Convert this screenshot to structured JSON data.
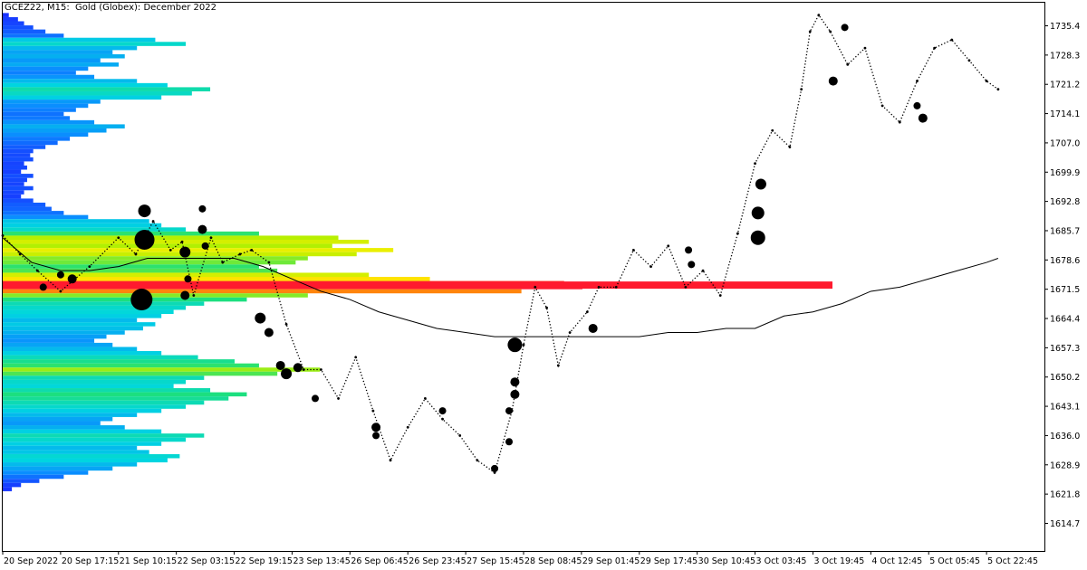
{
  "window": {
    "title": "GCEZ22, M15:  Gold (Globex): December 2022"
  },
  "colors": {
    "background": "#ffffff",
    "axis": "#000000",
    "price_line": "#000000",
    "poc": "#ff1a2e",
    "profile_gradient": [
      "#1a2bff",
      "#0a8cff",
      "#00d6e0",
      "#1ee07a",
      "#b4f000",
      "#ffee00",
      "#ffaa00",
      "#ff1a2e"
    ]
  },
  "chart_data": {
    "type": "line",
    "title": "GCEZ22, M15:  Gold (Globex): December 2022",
    "symbol": "GCEZ22",
    "timeframe": "M15",
    "instrument": "Gold (Globex): December 2022",
    "ylim": [
      1608,
      1741
    ],
    "y_ticks": [
      1614.7,
      1621.8,
      1628.9,
      1636.0,
      1643.1,
      1650.2,
      1657.3,
      1664.4,
      1671.5,
      1678.6,
      1685.7,
      1692.8,
      1699.9,
      1707.0,
      1714.1,
      1721.2,
      1728.3,
      1735.4
    ],
    "x_ticks": [
      "20 Sep 2022",
      "20 Sep 17:15",
      "21 Sep 10:15",
      "22 Sep 03:15",
      "22 Sep 19:15",
      "23 Sep 13:45",
      "26 Sep 06:45",
      "26 Sep 23:45",
      "27 Sep 15:45",
      "28 Sep 08:45",
      "29 Sep 01:45",
      "29 Sep 17:45",
      "30 Sep 10:45",
      "3 Oct 03:45",
      "3 Oct 19:45",
      "4 Oct 12:45",
      "5 Oct 05:45",
      "5 Oct 22:45"
    ],
    "grid": false,
    "series": [
      {
        "kind": "price",
        "x": [
          0,
          0.3,
          0.6,
          1.0,
          1.5,
          2.0,
          2.3,
          2.6,
          2.9,
          3.1,
          3.3,
          3.6,
          3.8,
          4.1,
          4.3,
          4.6,
          4.9,
          5.2,
          5.5,
          5.8,
          6.1,
          6.4,
          6.7,
          7.0,
          7.3,
          7.6,
          7.9,
          8.2,
          8.5,
          8.8,
          9.0,
          9.2,
          9.4,
          9.6,
          9.8,
          10.1,
          10.3,
          10.6,
          10.9,
          11.2,
          11.5,
          11.8,
          12.1,
          12.4,
          12.7,
          13.0,
          13.3,
          13.6,
          13.8,
          13.95,
          14.1,
          14.3,
          14.6,
          14.9,
          15.2,
          15.5,
          15.8,
          16.1,
          16.4,
          16.7,
          17.0,
          17.2
        ],
        "y": [
          1684.5,
          1680,
          1676,
          1671,
          1677,
          1684,
          1680,
          1688,
          1681,
          1683,
          1670,
          1684,
          1678,
          1680,
          1681,
          1678,
          1663,
          1652,
          1652,
          1645,
          1655,
          1642,
          1630,
          1638,
          1645,
          1640,
          1636,
          1630,
          1627,
          1642,
          1658,
          1672,
          1667,
          1653,
          1661,
          1666,
          1672,
          1672,
          1681,
          1677,
          1682,
          1672,
          1676,
          1670,
          1685,
          1702,
          1710,
          1706,
          1720,
          1734,
          1738,
          1734,
          1726,
          1730,
          1716,
          1712,
          1722,
          1730,
          1732,
          1727,
          1722,
          1720
        ]
      },
      {
        "kind": "moving-average",
        "x": [
          0,
          0.5,
          1.0,
          1.5,
          2.0,
          2.5,
          3.0,
          3.5,
          4.0,
          4.5,
          5.0,
          5.5,
          6.0,
          6.5,
          7.0,
          7.5,
          8.0,
          8.5,
          9.0,
          9.5,
          10.0,
          10.5,
          11.0,
          11.5,
          12.0,
          12.5,
          13.0,
          13.5,
          14.0,
          14.5,
          15.0,
          15.5,
          16.0,
          16.5,
          17.0,
          17.2
        ],
        "y": [
          1684,
          1678,
          1676,
          1676,
          1677,
          1679,
          1679,
          1679,
          1679,
          1677,
          1674,
          1671,
          1669,
          1666,
          1664,
          1662,
          1661,
          1660,
          1660,
          1660,
          1660,
          1660,
          1660,
          1661,
          1661,
          1662,
          1662,
          1665,
          1666,
          1668,
          1671,
          1672,
          1674,
          1676,
          1678,
          1679
        ]
      }
    ],
    "volume_profile": {
      "levels": [
        [
          1738,
          1.0
        ],
        [
          1737,
          2.5
        ],
        [
          1736,
          3.5
        ],
        [
          1735,
          5
        ],
        [
          1734,
          7
        ],
        [
          1733,
          10
        ],
        [
          1732,
          25
        ],
        [
          1731,
          30
        ],
        [
          1730,
          22
        ],
        [
          1729,
          18
        ],
        [
          1728,
          20
        ],
        [
          1727,
          16
        ],
        [
          1726,
          19
        ],
        [
          1725,
          14
        ],
        [
          1724,
          12
        ],
        [
          1723,
          15
        ],
        [
          1722,
          22
        ],
        [
          1721,
          27
        ],
        [
          1720,
          34
        ],
        [
          1719,
          31
        ],
        [
          1718,
          26
        ],
        [
          1717,
          16
        ],
        [
          1716,
          14
        ],
        [
          1715,
          12
        ],
        [
          1714,
          10
        ],
        [
          1713,
          11
        ],
        [
          1712,
          15
        ],
        [
          1711,
          20
        ],
        [
          1710,
          17
        ],
        [
          1709,
          14
        ],
        [
          1708,
          11
        ],
        [
          1707,
          9
        ],
        [
          1706,
          7
        ],
        [
          1705,
          5
        ],
        [
          1704,
          4.5
        ],
        [
          1703,
          5
        ],
        [
          1702,
          3.5
        ],
        [
          1701,
          4
        ],
        [
          1700,
          3
        ],
        [
          1699,
          5
        ],
        [
          1698,
          4
        ],
        [
          1697,
          3.5
        ],
        [
          1696,
          5
        ],
        [
          1695,
          3.5
        ],
        [
          1694,
          3
        ],
        [
          1693,
          5
        ],
        [
          1692,
          7
        ],
        [
          1691,
          8
        ],
        [
          1690,
          10
        ],
        [
          1689,
          14
        ],
        [
          1688,
          24
        ],
        [
          1687,
          26
        ],
        [
          1686,
          30
        ],
        [
          1685,
          42
        ],
        [
          1684,
          55
        ],
        [
          1683,
          60
        ],
        [
          1682,
          54
        ],
        [
          1681,
          64
        ],
        [
          1680,
          58
        ],
        [
          1679,
          50
        ],
        [
          1678,
          48
        ],
        [
          1677,
          42
        ],
        [
          1676,
          45
        ],
        [
          1675,
          60
        ],
        [
          1674,
          70
        ],
        [
          1673,
          92
        ],
        [
          1672,
          95
        ],
        [
          1671,
          85
        ],
        [
          1670,
          50
        ],
        [
          1669,
          40
        ],
        [
          1668,
          33
        ],
        [
          1667,
          30
        ],
        [
          1666,
          28
        ],
        [
          1665,
          26
        ],
        [
          1664,
          22
        ],
        [
          1663,
          25
        ],
        [
          1662,
          23
        ],
        [
          1661,
          20
        ],
        [
          1660,
          17
        ],
        [
          1659,
          15
        ],
        [
          1658,
          18
        ],
        [
          1657,
          22
        ],
        [
          1656,
          26
        ],
        [
          1655,
          32
        ],
        [
          1654,
          38
        ],
        [
          1653,
          42
        ],
        [
          1652,
          52
        ],
        [
          1651,
          45
        ],
        [
          1650,
          33
        ],
        [
          1649,
          30
        ],
        [
          1648,
          28
        ],
        [
          1647,
          34
        ],
        [
          1646,
          40
        ],
        [
          1645,
          37
        ],
        [
          1644,
          33
        ],
        [
          1643,
          30
        ],
        [
          1642,
          26
        ],
        [
          1641,
          22
        ],
        [
          1640,
          18
        ],
        [
          1639,
          16
        ],
        [
          1638,
          20
        ],
        [
          1637,
          26
        ],
        [
          1636,
          33
        ],
        [
          1635,
          30
        ],
        [
          1634,
          26
        ],
        [
          1633,
          22
        ],
        [
          1632,
          24
        ],
        [
          1631,
          29
        ],
        [
          1630,
          27
        ],
        [
          1629,
          22
        ],
        [
          1628,
          18
        ],
        [
          1627,
          14
        ],
        [
          1626,
          10
        ],
        [
          1625,
          6
        ],
        [
          1624,
          3
        ],
        [
          1623,
          1.5
        ]
      ],
      "poc": 1672.5
    },
    "dots": [
      [
        2.45,
        1690.5,
        7
      ],
      [
        2.45,
        1683.5,
        11
      ],
      [
        2.4,
        1669,
        12
      ],
      [
        1.2,
        1674,
        5
      ],
      [
        3.15,
        1680.5,
        6
      ],
      [
        3.15,
        1670,
        5
      ],
      [
        3.45,
        1686,
        5
      ],
      [
        3.45,
        1691,
        4
      ],
      [
        3.5,
        1682,
        4
      ],
      [
        4.45,
        1664.5,
        6
      ],
      [
        4.6,
        1661,
        5
      ],
      [
        4.8,
        1653,
        5
      ],
      [
        4.9,
        1651,
        6
      ],
      [
        5.4,
        1645,
        4
      ],
      [
        6.45,
        1638,
        5
      ],
      [
        6.45,
        1636,
        4
      ],
      [
        7.6,
        1642,
        4
      ],
      [
        8.5,
        1628,
        4
      ],
      [
        8.75,
        1634.5,
        4
      ],
      [
        8.85,
        1658,
        8
      ],
      [
        8.85,
        1649,
        5
      ],
      [
        8.85,
        1646,
        5
      ],
      [
        8.75,
        1642,
        4
      ],
      [
        10.2,
        1662,
        5
      ],
      [
        11.85,
        1681,
        4
      ],
      [
        11.9,
        1677.5,
        4
      ],
      [
        13.05,
        1684,
        8
      ],
      [
        13.05,
        1690,
        7
      ],
      [
        13.1,
        1697,
        6
      ],
      [
        14.35,
        1722,
        5
      ],
      [
        15.8,
        1716,
        4
      ],
      [
        15.9,
        1713,
        5
      ],
      [
        14.55,
        1735,
        4
      ],
      [
        1.0,
        1675,
        4
      ],
      [
        0.7,
        1672,
        4
      ],
      [
        5.1,
        1652.5,
        5
      ],
      [
        3.2,
        1674,
        4
      ]
    ]
  }
}
